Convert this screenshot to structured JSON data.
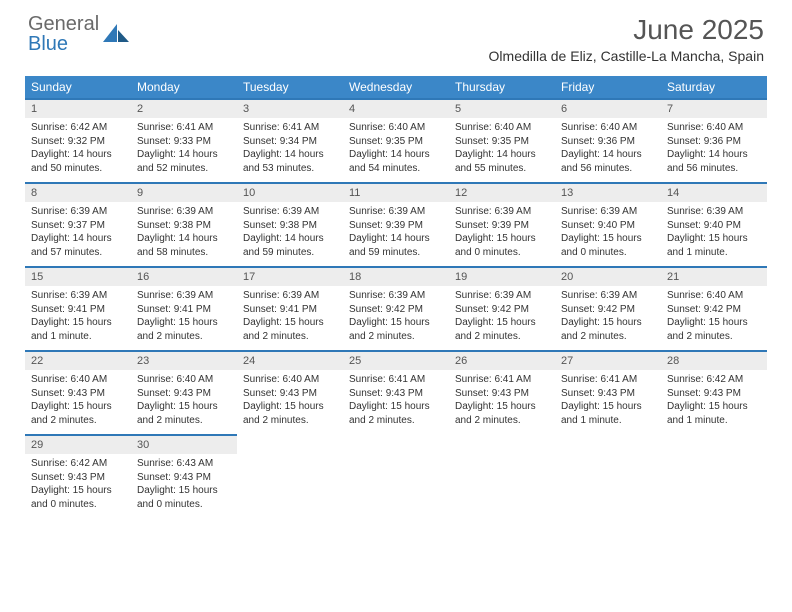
{
  "brand": {
    "part1": "General",
    "part2": "Blue"
  },
  "title": "June 2025",
  "location": "Olmedilla de Eliz, Castille-La Mancha, Spain",
  "colors": {
    "header_bg": "#3b87c8",
    "daynum_bg": "#ededed",
    "day_border": "#2f78b7",
    "text": "#333333",
    "title_text": "#555555"
  },
  "weekdays": [
    "Sunday",
    "Monday",
    "Tuesday",
    "Wednesday",
    "Thursday",
    "Friday",
    "Saturday"
  ],
  "weeks": [
    [
      {
        "n": "1",
        "sr": "Sunrise: 6:42 AM",
        "ss": "Sunset: 9:32 PM",
        "dl": "Daylight: 14 hours and 50 minutes."
      },
      {
        "n": "2",
        "sr": "Sunrise: 6:41 AM",
        "ss": "Sunset: 9:33 PM",
        "dl": "Daylight: 14 hours and 52 minutes."
      },
      {
        "n": "3",
        "sr": "Sunrise: 6:41 AM",
        "ss": "Sunset: 9:34 PM",
        "dl": "Daylight: 14 hours and 53 minutes."
      },
      {
        "n": "4",
        "sr": "Sunrise: 6:40 AM",
        "ss": "Sunset: 9:35 PM",
        "dl": "Daylight: 14 hours and 54 minutes."
      },
      {
        "n": "5",
        "sr": "Sunrise: 6:40 AM",
        "ss": "Sunset: 9:35 PM",
        "dl": "Daylight: 14 hours and 55 minutes."
      },
      {
        "n": "6",
        "sr": "Sunrise: 6:40 AM",
        "ss": "Sunset: 9:36 PM",
        "dl": "Daylight: 14 hours and 56 minutes."
      },
      {
        "n": "7",
        "sr": "Sunrise: 6:40 AM",
        "ss": "Sunset: 9:36 PM",
        "dl": "Daylight: 14 hours and 56 minutes."
      }
    ],
    [
      {
        "n": "8",
        "sr": "Sunrise: 6:39 AM",
        "ss": "Sunset: 9:37 PM",
        "dl": "Daylight: 14 hours and 57 minutes."
      },
      {
        "n": "9",
        "sr": "Sunrise: 6:39 AM",
        "ss": "Sunset: 9:38 PM",
        "dl": "Daylight: 14 hours and 58 minutes."
      },
      {
        "n": "10",
        "sr": "Sunrise: 6:39 AM",
        "ss": "Sunset: 9:38 PM",
        "dl": "Daylight: 14 hours and 59 minutes."
      },
      {
        "n": "11",
        "sr": "Sunrise: 6:39 AM",
        "ss": "Sunset: 9:39 PM",
        "dl": "Daylight: 14 hours and 59 minutes."
      },
      {
        "n": "12",
        "sr": "Sunrise: 6:39 AM",
        "ss": "Sunset: 9:39 PM",
        "dl": "Daylight: 15 hours and 0 minutes."
      },
      {
        "n": "13",
        "sr": "Sunrise: 6:39 AM",
        "ss": "Sunset: 9:40 PM",
        "dl": "Daylight: 15 hours and 0 minutes."
      },
      {
        "n": "14",
        "sr": "Sunrise: 6:39 AM",
        "ss": "Sunset: 9:40 PM",
        "dl": "Daylight: 15 hours and 1 minute."
      }
    ],
    [
      {
        "n": "15",
        "sr": "Sunrise: 6:39 AM",
        "ss": "Sunset: 9:41 PM",
        "dl": "Daylight: 15 hours and 1 minute."
      },
      {
        "n": "16",
        "sr": "Sunrise: 6:39 AM",
        "ss": "Sunset: 9:41 PM",
        "dl": "Daylight: 15 hours and 2 minutes."
      },
      {
        "n": "17",
        "sr": "Sunrise: 6:39 AM",
        "ss": "Sunset: 9:41 PM",
        "dl": "Daylight: 15 hours and 2 minutes."
      },
      {
        "n": "18",
        "sr": "Sunrise: 6:39 AM",
        "ss": "Sunset: 9:42 PM",
        "dl": "Daylight: 15 hours and 2 minutes."
      },
      {
        "n": "19",
        "sr": "Sunrise: 6:39 AM",
        "ss": "Sunset: 9:42 PM",
        "dl": "Daylight: 15 hours and 2 minutes."
      },
      {
        "n": "20",
        "sr": "Sunrise: 6:39 AM",
        "ss": "Sunset: 9:42 PM",
        "dl": "Daylight: 15 hours and 2 minutes."
      },
      {
        "n": "21",
        "sr": "Sunrise: 6:40 AM",
        "ss": "Sunset: 9:42 PM",
        "dl": "Daylight: 15 hours and 2 minutes."
      }
    ],
    [
      {
        "n": "22",
        "sr": "Sunrise: 6:40 AM",
        "ss": "Sunset: 9:43 PM",
        "dl": "Daylight: 15 hours and 2 minutes."
      },
      {
        "n": "23",
        "sr": "Sunrise: 6:40 AM",
        "ss": "Sunset: 9:43 PM",
        "dl": "Daylight: 15 hours and 2 minutes."
      },
      {
        "n": "24",
        "sr": "Sunrise: 6:40 AM",
        "ss": "Sunset: 9:43 PM",
        "dl": "Daylight: 15 hours and 2 minutes."
      },
      {
        "n": "25",
        "sr": "Sunrise: 6:41 AM",
        "ss": "Sunset: 9:43 PM",
        "dl": "Daylight: 15 hours and 2 minutes."
      },
      {
        "n": "26",
        "sr": "Sunrise: 6:41 AM",
        "ss": "Sunset: 9:43 PM",
        "dl": "Daylight: 15 hours and 2 minutes."
      },
      {
        "n": "27",
        "sr": "Sunrise: 6:41 AM",
        "ss": "Sunset: 9:43 PM",
        "dl": "Daylight: 15 hours and 1 minute."
      },
      {
        "n": "28",
        "sr": "Sunrise: 6:42 AM",
        "ss": "Sunset: 9:43 PM",
        "dl": "Daylight: 15 hours and 1 minute."
      }
    ],
    [
      {
        "n": "29",
        "sr": "Sunrise: 6:42 AM",
        "ss": "Sunset: 9:43 PM",
        "dl": "Daylight: 15 hours and 0 minutes."
      },
      {
        "n": "30",
        "sr": "Sunrise: 6:43 AM",
        "ss": "Sunset: 9:43 PM",
        "dl": "Daylight: 15 hours and 0 minutes."
      },
      null,
      null,
      null,
      null,
      null
    ]
  ]
}
